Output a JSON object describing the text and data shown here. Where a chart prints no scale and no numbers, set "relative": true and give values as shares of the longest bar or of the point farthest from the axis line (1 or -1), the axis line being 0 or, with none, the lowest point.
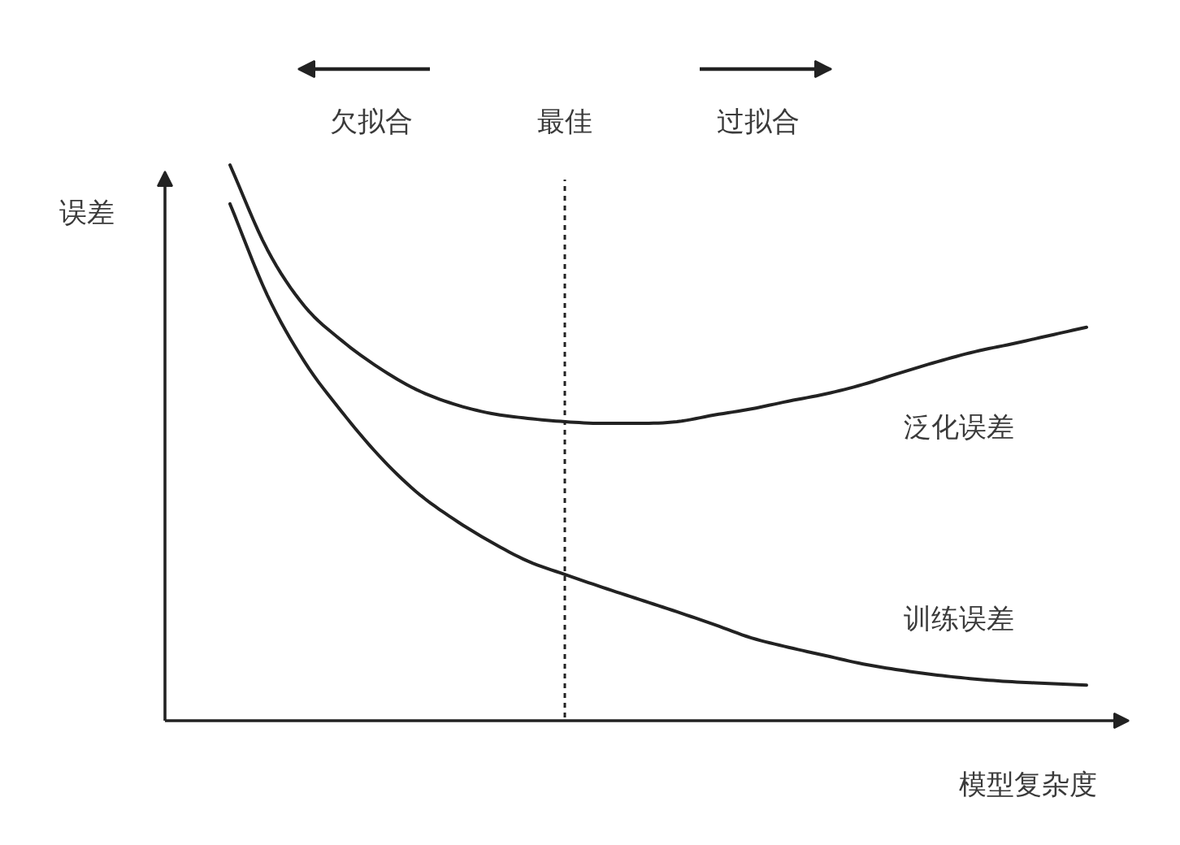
{
  "chart_data": {
    "type": "line",
    "relative": true,
    "categories": [
      null,
      null,
      null,
      null,
      null,
      null,
      null,
      null,
      null,
      null,
      null,
      null,
      null,
      null,
      null,
      null,
      null,
      null,
      null,
      null,
      null,
      null,
      null,
      null
    ],
    "xlabel": "模型复杂度",
    "ylabel": "误差",
    "series": [
      {
        "name": "泛化误差",
        "color": "#222222",
        "values": [
          1.0,
          0.848,
          0.746,
          0.684,
          0.635,
          0.596,
          0.57,
          0.553,
          0.544,
          0.538,
          0.535,
          0.535,
          0.538,
          0.55,
          0.561,
          0.575,
          0.588,
          0.605,
          0.626,
          0.646,
          0.664,
          0.678,
          0.693,
          0.708
        ]
      },
      {
        "name": "训练误差",
        "color": "#222222",
        "values": [
          0.93,
          0.766,
          0.646,
          0.556,
          0.477,
          0.412,
          0.363,
          0.322,
          0.287,
          0.263,
          0.24,
          0.218,
          0.196,
          0.173,
          0.149,
          0.132,
          0.117,
          0.102,
          0.091,
          0.082,
          0.075,
          0.07,
          0.067,
          0.064
        ]
      }
    ],
    "annotations": [
      "欠拟合",
      "最佳",
      "过拟合"
    ],
    "grid": false,
    "legend": false,
    "tick_labels": false
  }
}
